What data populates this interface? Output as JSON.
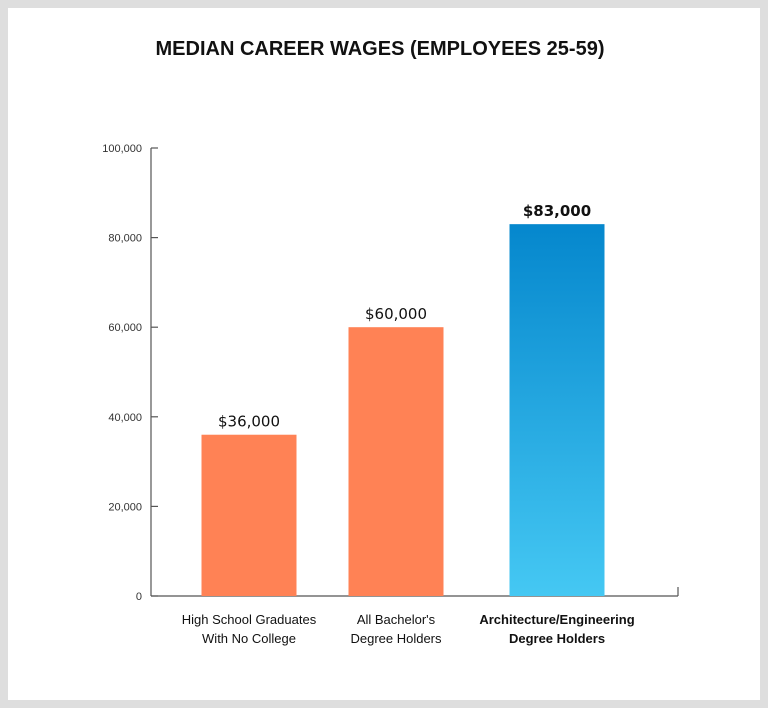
{
  "chart_data": {
    "type": "bar",
    "title": "MEDIAN CAREER WAGES (EMPLOYEES 25-59)",
    "categories": [
      [
        "High School  Graduates",
        "With No College"
      ],
      [
        "All Bachelor's",
        "Degree Holders"
      ],
      [
        "Architecture/Engineering",
        "Degree Holders"
      ]
    ],
    "values": [
      36000,
      60000,
      83000
    ],
    "data_labels": [
      "$36,000",
      "$60,000",
      "$83,000"
    ],
    "highlight": [
      false,
      false,
      true
    ],
    "ylim": [
      0,
      100000
    ],
    "yticks": [
      0,
      20000,
      40000,
      60000,
      80000,
      100000
    ],
    "ytick_labels": [
      "0",
      "20,000",
      "40,000",
      "60,000",
      "80,000",
      "100,000"
    ],
    "grid": false,
    "colors": {
      "bar": "#ff8255",
      "highlight_top": "#0587cd",
      "highlight_bottom": "#45c8f3",
      "axis": "#555555",
      "background": "#ffffff",
      "border": "#dedede"
    }
  }
}
